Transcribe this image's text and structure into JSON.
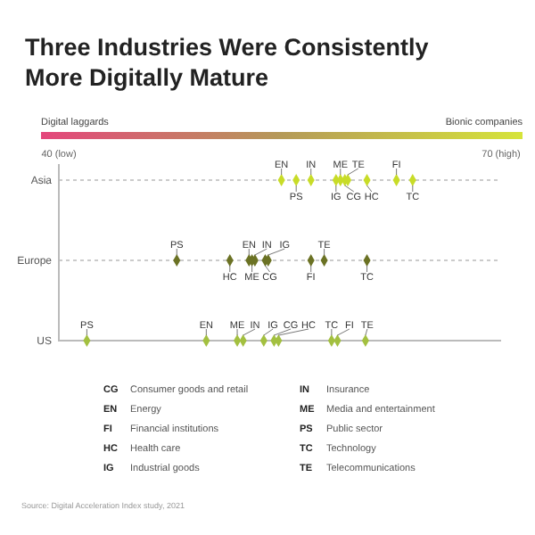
{
  "chart_data": {
    "type": "scatter",
    "orientation": "horizontal",
    "title": "Three Industries Were Consistently More Digitally Mature",
    "categories": [
      "Asia",
      "Europe",
      "US"
    ],
    "xlim": [
      40,
      70
    ],
    "xticks": [
      {
        "value": 40,
        "label": "40 (low)"
      },
      {
        "value": 70,
        "label": "70 (high)"
      }
    ],
    "grid": true,
    "marker": "diamond",
    "series": [
      {
        "name": "CG",
        "values": [
          59.4,
          54.0,
          54.6
        ],
        "colors": [
          "#c8dc28",
          "#6b7224",
          "#a3c040"
        ]
      },
      {
        "name": "EN",
        "values": [
          55.1,
          52.9,
          50.0
        ],
        "colors": [
          "#c8dc28",
          "#6b7224",
          "#a3c040"
        ]
      },
      {
        "name": "FI",
        "values": [
          62.9,
          57.1,
          58.9
        ],
        "colors": [
          "#c8dc28",
          "#6b7224",
          "#a3c040"
        ]
      },
      {
        "name": "HC",
        "values": [
          60.9,
          51.6,
          54.9
        ],
        "colors": [
          "#c8dc28",
          "#6b7224",
          "#a3c040"
        ]
      },
      {
        "name": "IG",
        "values": [
          58.8,
          54.2,
          53.9
        ],
        "colors": [
          "#c8dc28",
          "#6b7224",
          "#a3c040"
        ]
      },
      {
        "name": "IN",
        "values": [
          57.1,
          53.3,
          52.5
        ],
        "colors": [
          "#c8dc28",
          "#6b7224",
          "#a3c040"
        ]
      },
      {
        "name": "ME",
        "values": [
          59.1,
          53.1,
          52.1
        ],
        "colors": [
          "#c8dc28",
          "#6b7224",
          "#a3c040"
        ]
      },
      {
        "name": "PS",
        "values": [
          56.1,
          48.0,
          41.9
        ],
        "colors": [
          "#c8dc28",
          "#6b7224",
          "#a3c040"
        ]
      },
      {
        "name": "TC",
        "values": [
          64.0,
          60.9,
          58.5
        ],
        "colors": [
          "#c8dc28",
          "#6b7224",
          "#a3c040"
        ]
      },
      {
        "name": "TE",
        "values": [
          59.6,
          58.0,
          60.8
        ],
        "colors": [
          "#c8dc28",
          "#6b7224",
          "#a3c040"
        ]
      }
    ],
    "annotations": [
      "Digital laggards",
      "Bionic companies",
      "CG Consumer goods and retail",
      "EN Energy",
      "FI Financial institutions",
      "HC Health care",
      "IG Industrial goods",
      "IN Insurance",
      "ME Media and entertainment",
      "PS Public sector",
      "TC Technology",
      "TE Telecommunications",
      "Source: Digital Acceleration Index study, 2021"
    ]
  }
}
